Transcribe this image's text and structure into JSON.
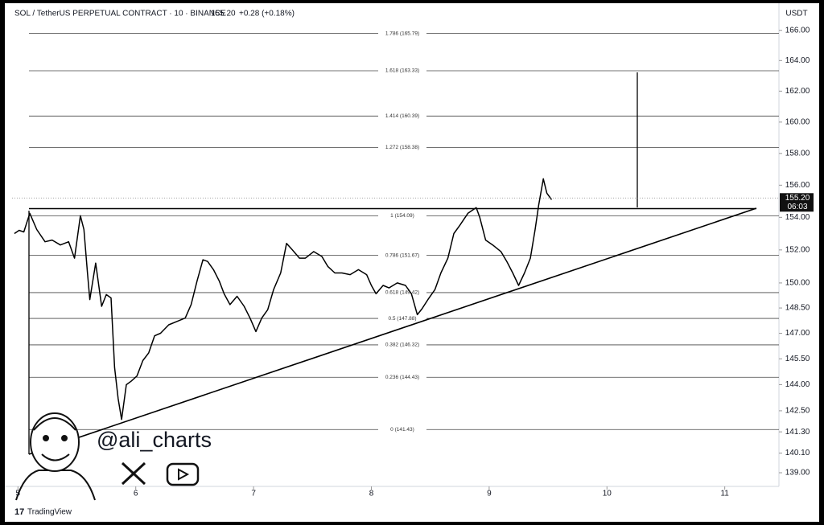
{
  "chart_data": {
    "type": "line",
    "title": "SOL / TetherUS PERPETUAL CONTRACT · 10 · BINANCE",
    "price": "155.20",
    "change": "+0.28 (+0.18%)",
    "currency": "USDT",
    "log_scale": true,
    "color": "#000000",
    "x": [
      4.97,
      5.01,
      5.05,
      5.1,
      5.16,
      5.23,
      5.29,
      5.36,
      5.43,
      5.48,
      5.53,
      5.56,
      5.59,
      5.61,
      5.66,
      5.71,
      5.75,
      5.79,
      5.82,
      5.85,
      5.88,
      5.92,
      5.96,
      6.01,
      6.06,
      6.11,
      6.16,
      6.21,
      6.28,
      6.35,
      6.42,
      6.47,
      6.52,
      6.57,
      6.61,
      6.66,
      6.71,
      6.75,
      6.8,
      6.86,
      6.92,
      6.97,
      7.02,
      7.07,
      7.12,
      7.17,
      7.23,
      7.28,
      7.33,
      7.39,
      7.44,
      7.51,
      7.58,
      7.63,
      7.69,
      7.75,
      7.82,
      7.89,
      7.96,
      8.0,
      8.04,
      8.1,
      8.15,
      8.22,
      8.29,
      8.34,
      8.39,
      8.43,
      8.48,
      8.54,
      8.59,
      8.65,
      8.7,
      8.75,
      8.82,
      8.89,
      8.92,
      8.97,
      9.03,
      9.1,
      9.15,
      9.2,
      9.25,
      9.3,
      9.35,
      9.39,
      9.42,
      9.46,
      9.49,
      9.53
    ],
    "values": [
      153.0,
      153.2,
      153.1,
      154.25,
      153.25,
      152.5,
      152.6,
      152.3,
      152.5,
      151.5,
      154.1,
      153.25,
      150.6,
      149.0,
      151.2,
      148.6,
      149.3,
      149.1,
      145.0,
      143.2,
      142.0,
      144.0,
      144.2,
      144.5,
      145.4,
      145.85,
      146.85,
      147.0,
      147.5,
      147.7,
      147.9,
      148.7,
      150.1,
      151.4,
      151.3,
      150.8,
      150.1,
      149.35,
      148.7,
      149.2,
      148.6,
      147.9,
      147.1,
      147.9,
      148.4,
      149.6,
      150.6,
      152.4,
      152.0,
      151.5,
      151.5,
      151.9,
      151.6,
      151.0,
      150.6,
      150.6,
      150.5,
      150.8,
      150.5,
      149.85,
      149.35,
      149.85,
      149.7,
      150.0,
      149.85,
      149.35,
      148.1,
      148.45,
      149.0,
      149.6,
      150.6,
      151.5,
      153.0,
      153.5,
      154.25,
      154.6,
      154.0,
      152.6,
      152.3,
      151.9,
      151.3,
      150.6,
      149.85,
      150.6,
      151.5,
      153.25,
      154.75,
      156.4,
      155.5,
      155.1
    ],
    "xlim": [
      4.95,
      11.46
    ],
    "xticks": [
      5,
      6,
      7,
      8,
      9,
      10,
      11
    ],
    "ylim": [
      138.24,
      167.6
    ],
    "yticks": [
      {
        "value": 166,
        "label": "166.00"
      },
      {
        "value": 164,
        "label": "164.00"
      },
      {
        "value": 162,
        "label": "162.00"
      },
      {
        "value": 160,
        "label": "160.00"
      },
      {
        "value": 158,
        "label": "158.00"
      },
      {
        "value": 156,
        "label": "156.00"
      },
      {
        "value": 154,
        "label": "154.00"
      },
      {
        "value": 152,
        "label": "152.00"
      },
      {
        "value": 150,
        "label": "150.00"
      },
      {
        "value": 148.5,
        "label": "148.50"
      },
      {
        "value": 147,
        "label": "147.00"
      },
      {
        "value": 145.5,
        "label": "145.50"
      },
      {
        "value": 144,
        "label": "144.00"
      },
      {
        "value": 142.5,
        "label": "142.50"
      },
      {
        "value": 141.3,
        "label": "141.30"
      },
      {
        "value": 140.1,
        "label": "140.10"
      },
      {
        "value": 139,
        "label": "139.00"
      }
    ],
    "fib_levels": [
      {
        "value": 165.79,
        "label": "1.786 (165.79)"
      },
      {
        "value": 163.33,
        "label": "1.618 (163.33)"
      },
      {
        "value": 160.39,
        "label": "1.414 (160.39)"
      },
      {
        "value": 158.38,
        "label": "1.272 (158.38)"
      },
      {
        "value": 154.09,
        "label": "1 (154.09)"
      },
      {
        "value": 151.67,
        "label": "0.786 (151.67)"
      },
      {
        "value": 149.42,
        "label": "0.618 (149.42)"
      },
      {
        "value": 147.88,
        "label": "0.5 (147.88)"
      },
      {
        "value": 146.32,
        "label": "0.382 (146.32)"
      },
      {
        "value": 144.43,
        "label": "0.236 (144.43)"
      },
      {
        "value": 141.43,
        "label": "0 (141.43)"
      }
    ],
    "last_price": {
      "value": 155.2,
      "label": "155.20"
    },
    "countdown": "06:03",
    "watermark": "@ali_charts",
    "brand": "TradingView"
  }
}
